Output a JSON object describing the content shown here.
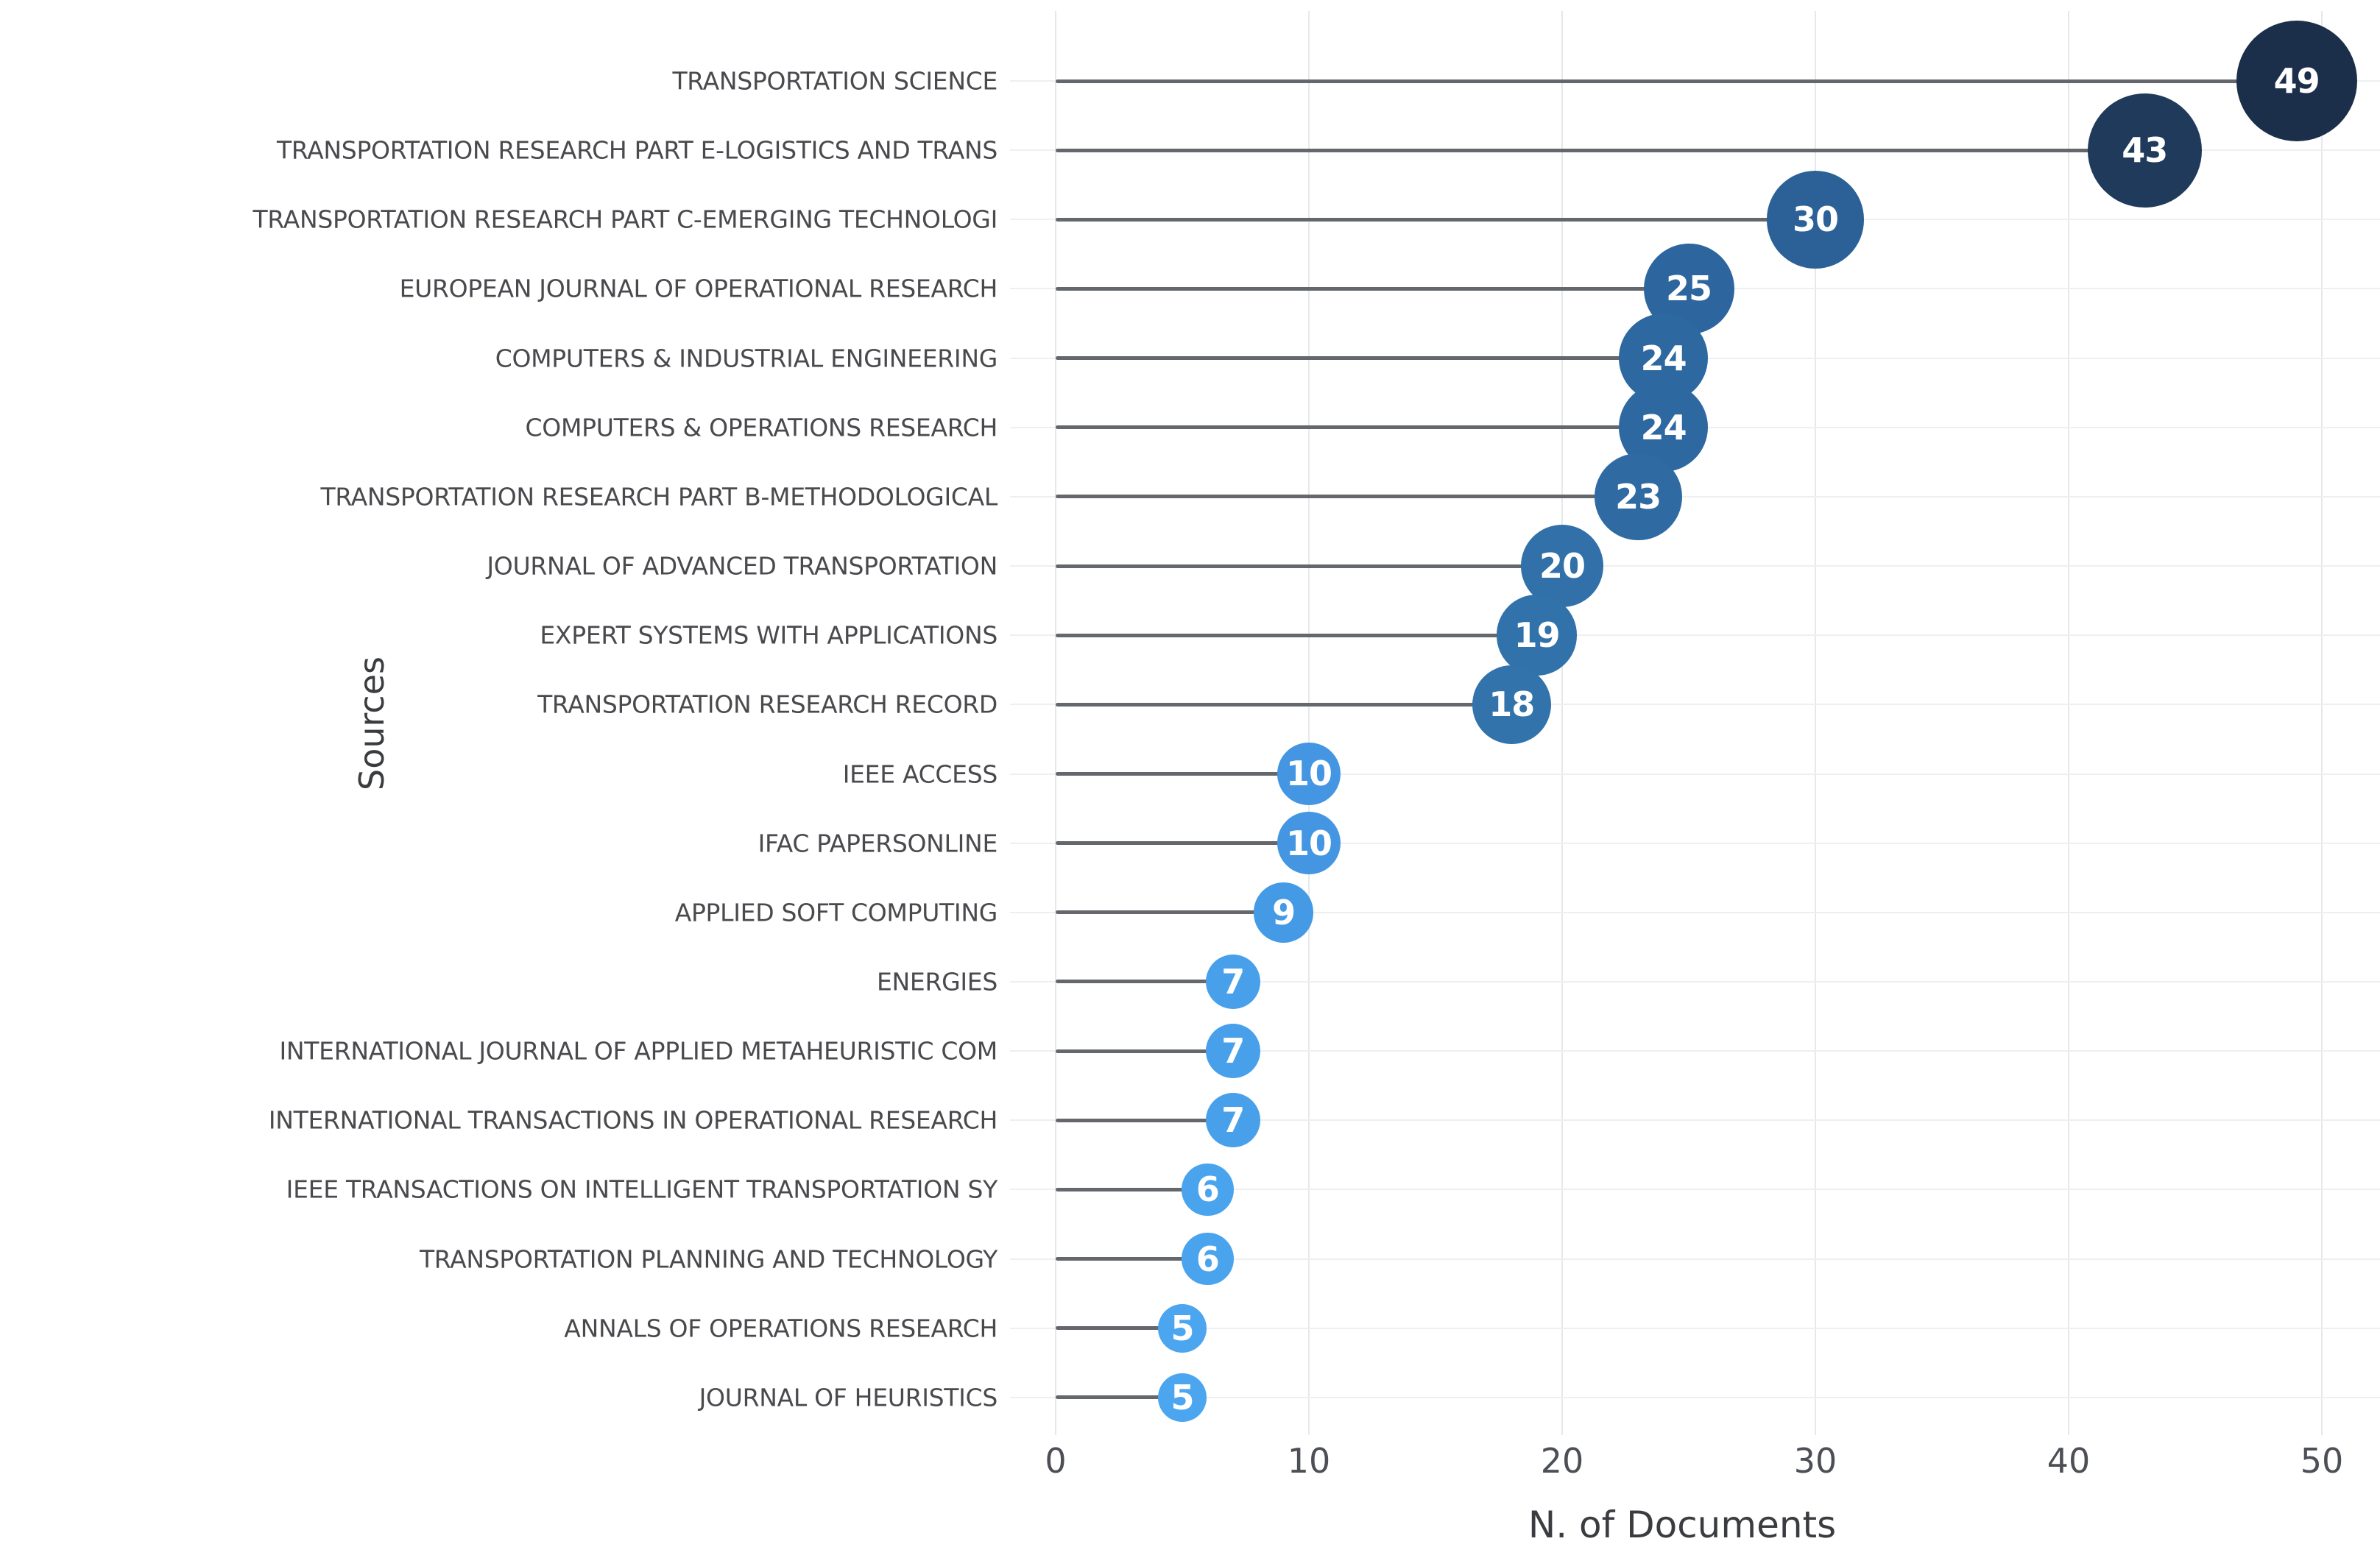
{
  "figure": {
    "background": "#ffffff",
    "colors": {
      "stem": "#64676c",
      "grid_vertical": "#e6e8eb",
      "grid_horizontal": "#edeff1",
      "bubble_text": "#ffffff",
      "row_label_text": "#4a4a4e",
      "tick_text": "#4c4f55",
      "axis_title_text": "#3a3c40"
    }
  },
  "chart_data": {
    "type": "scatter",
    "subtype": "lollipop-bubble",
    "orientation": "horizontal",
    "title": "",
    "xlabel": "N. of Documents",
    "ylabel": "Sources",
    "xlim": [
      0,
      50
    ],
    "xticks": [
      0,
      10,
      20,
      30,
      40,
      50
    ],
    "grid": "on",
    "legend": "none",
    "points": [
      {
        "label": "TRANSPORTATION SCIENCE",
        "value": 49,
        "color": "#1c2f4a"
      },
      {
        "label": "TRANSPORTATION RESEARCH PART E-LOGISTICS AND TRANS",
        "value": 43,
        "color": "#1f3a5a"
      },
      {
        "label": "TRANSPORTATION RESEARCH PART C-EMERGING TECHNOLOGI",
        "value": 30,
        "color": "#2b6197"
      },
      {
        "label": "EUROPEAN JOURNAL OF OPERATIONAL RESEARCH",
        "value": 25,
        "color": "#2d669e"
      },
      {
        "label": "COMPUTERS & INDUSTRIAL ENGINEERING",
        "value": 24,
        "color": "#2e68a0"
      },
      {
        "label": "COMPUTERS & OPERATIONS RESEARCH",
        "value": 24,
        "color": "#2e68a0"
      },
      {
        "label": "TRANSPORTATION RESEARCH PART B-METHODOLOGICAL",
        "value": 23,
        "color": "#2f6aa2"
      },
      {
        "label": "JOURNAL OF ADVANCED TRANSPORTATION",
        "value": 20,
        "color": "#3170a8"
      },
      {
        "label": "EXPERT SYSTEMS WITH APPLICATIONS",
        "value": 19,
        "color": "#3272aa"
      },
      {
        "label": "TRANSPORTATION RESEARCH RECORD",
        "value": 18,
        "color": "#3273ab"
      },
      {
        "label": "IEEE ACCESS",
        "value": 10,
        "color": "#4496e2"
      },
      {
        "label": "IFAC PAPERSONLINE",
        "value": 10,
        "color": "#4496e2"
      },
      {
        "label": "APPLIED SOFT COMPUTING",
        "value": 9,
        "color": "#459ae6"
      },
      {
        "label": "ENERGIES",
        "value": 7,
        "color": "#48a0eb"
      },
      {
        "label": "INTERNATIONAL JOURNAL OF APPLIED METAHEURISTIC COM",
        "value": 7,
        "color": "#48a0eb"
      },
      {
        "label": "INTERNATIONAL TRANSACTIONS IN OPERATIONAL RESEARCH",
        "value": 7,
        "color": "#48a0eb"
      },
      {
        "label": "IEEE TRANSACTIONS ON INTELLIGENT TRANSPORTATION SY",
        "value": 6,
        "color": "#4aa3ed"
      },
      {
        "label": "TRANSPORTATION PLANNING AND TECHNOLOGY",
        "value": 6,
        "color": "#4aa3ed"
      },
      {
        "label": "ANNALS OF OPERATIONS RESEARCH",
        "value": 5,
        "color": "#4ba5ef"
      },
      {
        "label": "JOURNAL OF HEURISTICS",
        "value": 5,
        "color": "#4ba5ef"
      }
    ]
  }
}
